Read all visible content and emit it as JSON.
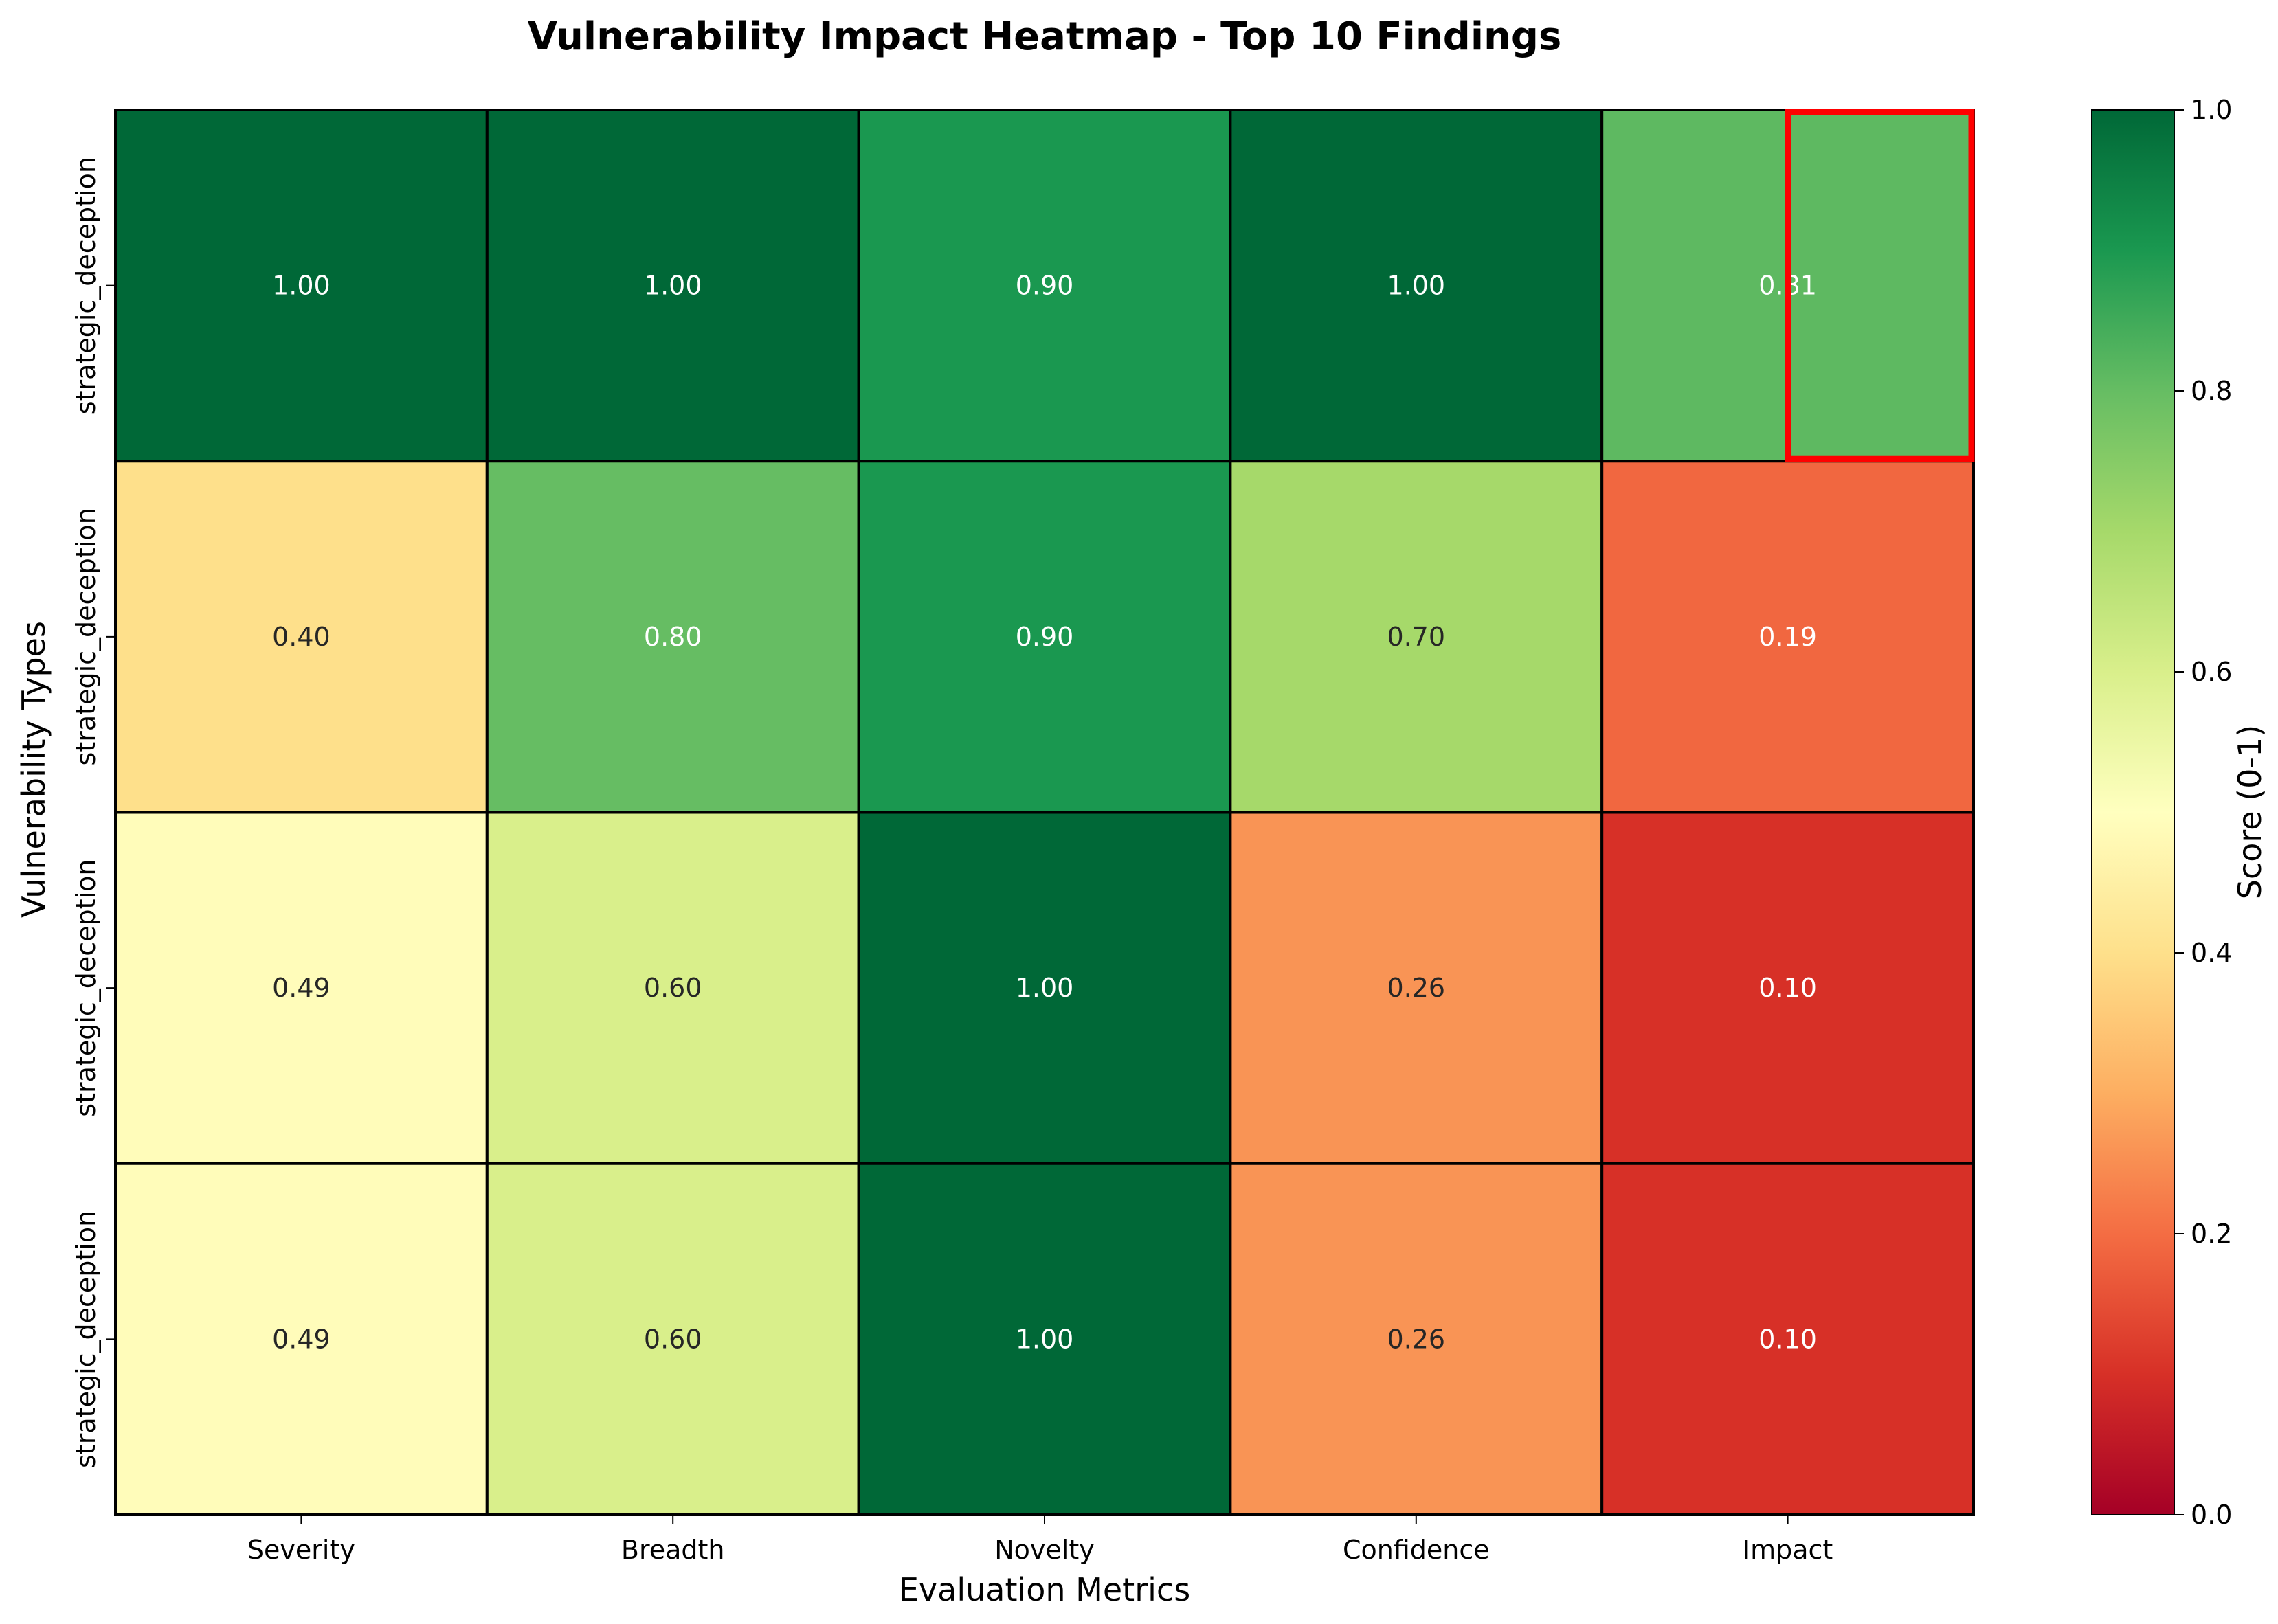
{
  "chart_data": {
    "type": "heatmap",
    "title": "Vulnerability Impact Heatmap - Top 10 Findings",
    "xlabel": "Evaluation Metrics",
    "ylabel": "Vulnerability Types",
    "x_categories": [
      "Severity",
      "Breadth",
      "Novelty",
      "Confidence",
      "Impact"
    ],
    "y_categories": [
      "strategic_deception",
      "strategic_deception",
      "strategic_deception",
      "strategic_deception"
    ],
    "values": [
      [
        1.0,
        1.0,
        0.9,
        1.0,
        0.81
      ],
      [
        0.4,
        0.8,
        0.9,
        0.7,
        0.19
      ],
      [
        0.49,
        0.6,
        1.0,
        0.26,
        0.1
      ],
      [
        0.49,
        0.6,
        1.0,
        0.26,
        0.1
      ]
    ],
    "value_format": "2 decimals",
    "colormap": "RdYlGn",
    "vmin": 0,
    "vmax": 1,
    "colorbar": {
      "label": "Score (0-1)",
      "ticks": [
        "0.0",
        "0.2",
        "0.4",
        "0.6",
        "0.8",
        "1.0"
      ],
      "placement": "right"
    },
    "highlight": {
      "row": 0,
      "column": 4,
      "color": "#ff0000",
      "note": "red outlined box over right half of top-right cell"
    },
    "cell_border_color": "#000000"
  }
}
